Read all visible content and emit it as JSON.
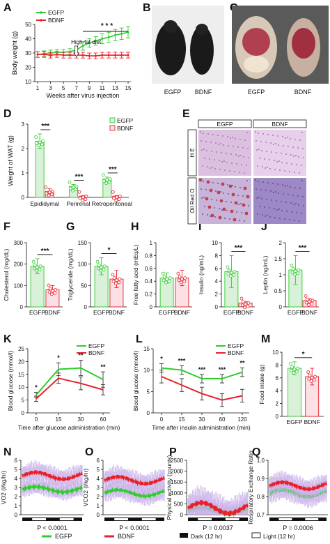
{
  "colors": {
    "egfp": "#2ecc2e",
    "bdnf": "#e8202a",
    "egfp_fill": "#dff3df",
    "bdnf_fill": "#fde0e6",
    "egfp_fill_bar": "#d9f0d9",
    "black": "#111111"
  },
  "panel_letters": [
    "A",
    "B",
    "C",
    "D",
    "E",
    "F",
    "G",
    "H",
    "I",
    "J",
    "K",
    "L",
    "M",
    "N",
    "O",
    "P",
    "Q"
  ],
  "photos": {
    "B": {
      "labels": [
        "EGFP",
        "BDNF"
      ]
    },
    "C": {
      "labels": [
        "EGFP",
        "BDNF"
      ]
    },
    "E": {
      "headers": [
        "EGFP",
        "BDNF"
      ],
      "rows": [
        "H E",
        "Oil Red O"
      ]
    }
  },
  "bottom_legend": {
    "egfp": "EGFP",
    "bdnf": "BDNF",
    "dark": "Dark (12 hr)",
    "light": "Light (12 hr)"
  },
  "chart_data": [
    {
      "panel": "A",
      "type": "line",
      "xlabel": "Weeks after virus injection",
      "ylabel": "Body weight (g)",
      "x": [
        1,
        2,
        3,
        4,
        5,
        6,
        7,
        8,
        9,
        10,
        11,
        12,
        13,
        14,
        15
      ],
      "xticks": [
        1,
        3,
        5,
        7,
        9,
        11,
        13,
        15
      ],
      "yticks": [
        10,
        20,
        30,
        40,
        50
      ],
      "ylim": [
        10,
        50
      ],
      "xlim": [
        1,
        15
      ],
      "series": [
        {
          "name": "EGFP",
          "values": [
            29,
            29.5,
            30,
            30.5,
            30.5,
            31,
            32,
            35,
            37,
            38.5,
            40,
            41,
            42.5,
            43.5,
            44.5
          ],
          "err": [
            2,
            2,
            2,
            2,
            2,
            2,
            2,
            3,
            3,
            3,
            3.5,
            3.5,
            4,
            4,
            4
          ]
        },
        {
          "name": "BDNF",
          "values": [
            29,
            29,
            28.5,
            29,
            28.5,
            28.5,
            28.5,
            28.5,
            28,
            28,
            28.5,
            28.5,
            28.5,
            28.5,
            28.5
          ],
          "err": [
            2,
            2,
            2,
            2,
            2,
            2,
            2,
            2,
            2,
            2,
            2,
            2,
            2,
            2,
            2
          ]
        }
      ],
      "annotations": [
        {
          "text": "High-fat diet",
          "x": 7
        }
      ],
      "significance": "* * *"
    },
    {
      "panel": "D",
      "type": "bar",
      "ylabel": "Weight of WAT (g)",
      "categories": [
        "Epididymal",
        "Perirenal",
        "Retroperitoneal"
      ],
      "yticks": [
        0,
        1,
        2,
        3
      ],
      "ylim": [
        0,
        3
      ],
      "series": [
        {
          "name": "EGFP",
          "values": [
            2.3,
            0.45,
            0.75
          ],
          "err": [
            0.3,
            0.08,
            0.08
          ]
        },
        {
          "name": "BDNF",
          "values": [
            0.25,
            0.05,
            0.05
          ],
          "err": [
            0.1,
            0.02,
            0.02
          ]
        }
      ],
      "significance": [
        "***",
        "***",
        "***"
      ]
    },
    {
      "panel": "F",
      "type": "bar",
      "ylabel": "Cholesterol (mg/dL)",
      "categories": [
        "EGFP",
        "BDNF"
      ],
      "values": [
        190,
        80
      ],
      "err": [
        35,
        20
      ],
      "yticks": [
        0,
        100,
        200,
        300
      ],
      "ylim": [
        0,
        300
      ],
      "significance": "***"
    },
    {
      "panel": "G",
      "type": "bar",
      "ylabel": "Triglyceride (mg/dL)",
      "categories": [
        "EGFP",
        "BDNF"
      ],
      "values": [
        95,
        65
      ],
      "err": [
        20,
        20
      ],
      "yticks": [
        0,
        50,
        100,
        150
      ],
      "ylim": [
        0,
        150
      ],
      "significance": "*"
    },
    {
      "panel": "H",
      "type": "bar",
      "ylabel": "Free fatty acid (mEq/L)",
      "categories": [
        "EGFP",
        "BDNF"
      ],
      "values": [
        0.45,
        0.45
      ],
      "err": [
        0.08,
        0.12
      ],
      "yticks": [
        0,
        0.2,
        0.4,
        0.6,
        0.8,
        1.0
      ],
      "ylim": [
        0,
        1.0
      ],
      "significance": ""
    },
    {
      "panel": "I",
      "type": "bar",
      "ylabel": "Insulin (ng/mL)",
      "categories": [
        "EGFP",
        "BDNF"
      ],
      "values": [
        5.5,
        0.6
      ],
      "err": [
        2.5,
        0.2
      ],
      "yticks": [
        0,
        2,
        4,
        6,
        8,
        10
      ],
      "ylim": [
        0,
        10
      ],
      "significance": "***"
    },
    {
      "panel": "J",
      "type": "bar",
      "ylabel": "Leptin (ng/mL)",
      "categories": [
        "EGFP",
        "BDNF"
      ],
      "values": [
        1.15,
        0.2
      ],
      "err": [
        0.45,
        0.05
      ],
      "yticks": [
        0,
        0.5,
        1.0,
        1.5,
        2.0
      ],
      "ylim": [
        0,
        2.0
      ],
      "significance": "***"
    },
    {
      "panel": "K",
      "type": "line",
      "xlabel": "Time after glucose administration (min)",
      "ylabel": "Blood glucose (mmol/l)",
      "x": [
        0,
        15,
        30,
        60
      ],
      "yticks": [
        0,
        5,
        10,
        15,
        20,
        25
      ],
      "ylim": [
        0,
        25
      ],
      "series": [
        {
          "name": "EGFP",
          "values": [
            7,
            17,
            17.5,
            13
          ],
          "err": [
            1,
            2.5,
            3,
            3
          ]
        },
        {
          "name": "BDNF",
          "values": [
            5.5,
            13.5,
            11.5,
            9
          ],
          "err": [
            1,
            2,
            2.5,
            2
          ]
        }
      ],
      "significance": [
        "*",
        "*",
        "**",
        "**"
      ]
    },
    {
      "panel": "L",
      "type": "line",
      "xlabel": "Time after insulin administration (min)",
      "ylabel": "Blood glucose (mmol/l)",
      "x": [
        0,
        15,
        30,
        60,
        120
      ],
      "yticks": [
        0,
        5,
        10,
        15
      ],
      "ylim": [
        0,
        15
      ],
      "series": [
        {
          "name": "EGFP",
          "values": [
            10.5,
            10,
            8,
            8,
            9.5
          ],
          "err": [
            1,
            1,
            1,
            1,
            1
          ]
        },
        {
          "name": "BDNF",
          "values": [
            8.5,
            6.5,
            4.5,
            3,
            4
          ],
          "err": [
            1.5,
            1.5,
            1.5,
            1.5,
            1.5
          ]
        }
      ],
      "significance": [
        "*",
        "***",
        "***",
        "***",
        "**"
      ]
    },
    {
      "panel": "M",
      "type": "bar",
      "ylabel": "Food intake (g)",
      "categories": [
        "EGFP",
        "BDNF"
      ],
      "values": [
        7.5,
        6.2
      ],
      "err": [
        1.0,
        1.3
      ],
      "yticks": [
        0,
        2,
        4,
        6,
        8,
        10
      ],
      "ylim": [
        0,
        10
      ],
      "significance": "*"
    },
    {
      "panel": "N",
      "type": "line",
      "ylabel": "VO2 (l/kg/hr)",
      "yticks": [
        0,
        1,
        2,
        3,
        4,
        5,
        6
      ],
      "ylim": [
        0,
        6
      ],
      "series": [
        {
          "name": "EGFP",
          "mean": 2.8,
          "amp": 0.3
        },
        {
          "name": "BDNF",
          "mean": 4.3,
          "amp": 0.4
        }
      ],
      "pvalue": "P < 0.0001"
    },
    {
      "panel": "O",
      "type": "line",
      "ylabel": "VCO2 (l/kg/hr)",
      "yticks": [
        0,
        1,
        2,
        3,
        4,
        5,
        6
      ],
      "ylim": [
        0,
        6
      ],
      "series": [
        {
          "name": "EGFP",
          "mean": 2.4,
          "amp": 0.35
        },
        {
          "name": "BDNF",
          "mean": 3.8,
          "amp": 0.4
        }
      ],
      "pvalue": "P < 0.0001"
    },
    {
      "panel": "P",
      "type": "line",
      "ylabel": "Physical activity (counts)",
      "yticks": [
        0,
        500,
        1000,
        1500,
        2000,
        2500
      ],
      "ylim": [
        0,
        2500
      ],
      "series": [
        {
          "name": "EGFP",
          "mean": 180,
          "amp": 150
        },
        {
          "name": "BDNF",
          "mean": 300,
          "amp": 250
        }
      ],
      "pvalue": "P = 0.0037"
    },
    {
      "panel": "Q",
      "type": "line",
      "ylabel": "Respiratory Exchange Ratio",
      "yticks": [
        0.7,
        0.8,
        0.9,
        1.0
      ],
      "ylim": [
        0.7,
        1.0
      ],
      "series": [
        {
          "name": "EGFP",
          "mean": 0.82,
          "amp": 0.02
        },
        {
          "name": "BDNF",
          "mean": 0.86,
          "amp": 0.02
        }
      ],
      "pvalue": "P = 0.0006"
    }
  ]
}
